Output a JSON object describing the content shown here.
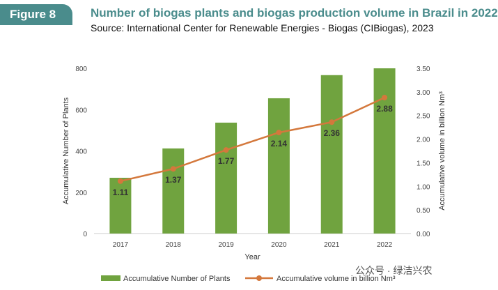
{
  "figure_label": "Figure 8",
  "chart_data": {
    "type": "bar+line",
    "title": "Number of biogas plants and biogas production volume in Brazil in 2022",
    "subtitle": "Source: International Center for Renewable Energies - Biogas (CIBiogas), 2023",
    "xlabel": "Year",
    "ylabel": "Accumulative Number of Plants",
    "y2label": "Accumulative volume in billion Nm³",
    "categories": [
      "2017",
      "2018",
      "2019",
      "2020",
      "2021",
      "2022"
    ],
    "ylim": [
      0,
      800
    ],
    "y2lim": [
      0,
      3.5
    ],
    "yticks": [
      "0",
      "200",
      "400",
      "600",
      "800"
    ],
    "y2ticks": [
      "0.00",
      "0.50",
      "1.00",
      "1.50",
      "2.00",
      "2.50",
      "3.00",
      "3.50"
    ],
    "series": [
      {
        "name": "Accumulative Number of Plants",
        "type": "bar",
        "axis": "left",
        "color": "#70a33f",
        "values": [
          270,
          412,
          537,
          655,
          767,
          800
        ]
      },
      {
        "name": "Accumulative volume in billion Nm³",
        "type": "line",
        "axis": "right",
        "color": "#d4783c",
        "values": [
          1.11,
          1.37,
          1.77,
          2.14,
          2.36,
          2.88
        ],
        "labels": [
          "1.11",
          "1.37",
          "1.77",
          "2.14",
          "2.36",
          "2.88"
        ]
      }
    ],
    "legend": "bottom",
    "grid": false
  },
  "watermark": "公众号 · 绿洁兴农"
}
